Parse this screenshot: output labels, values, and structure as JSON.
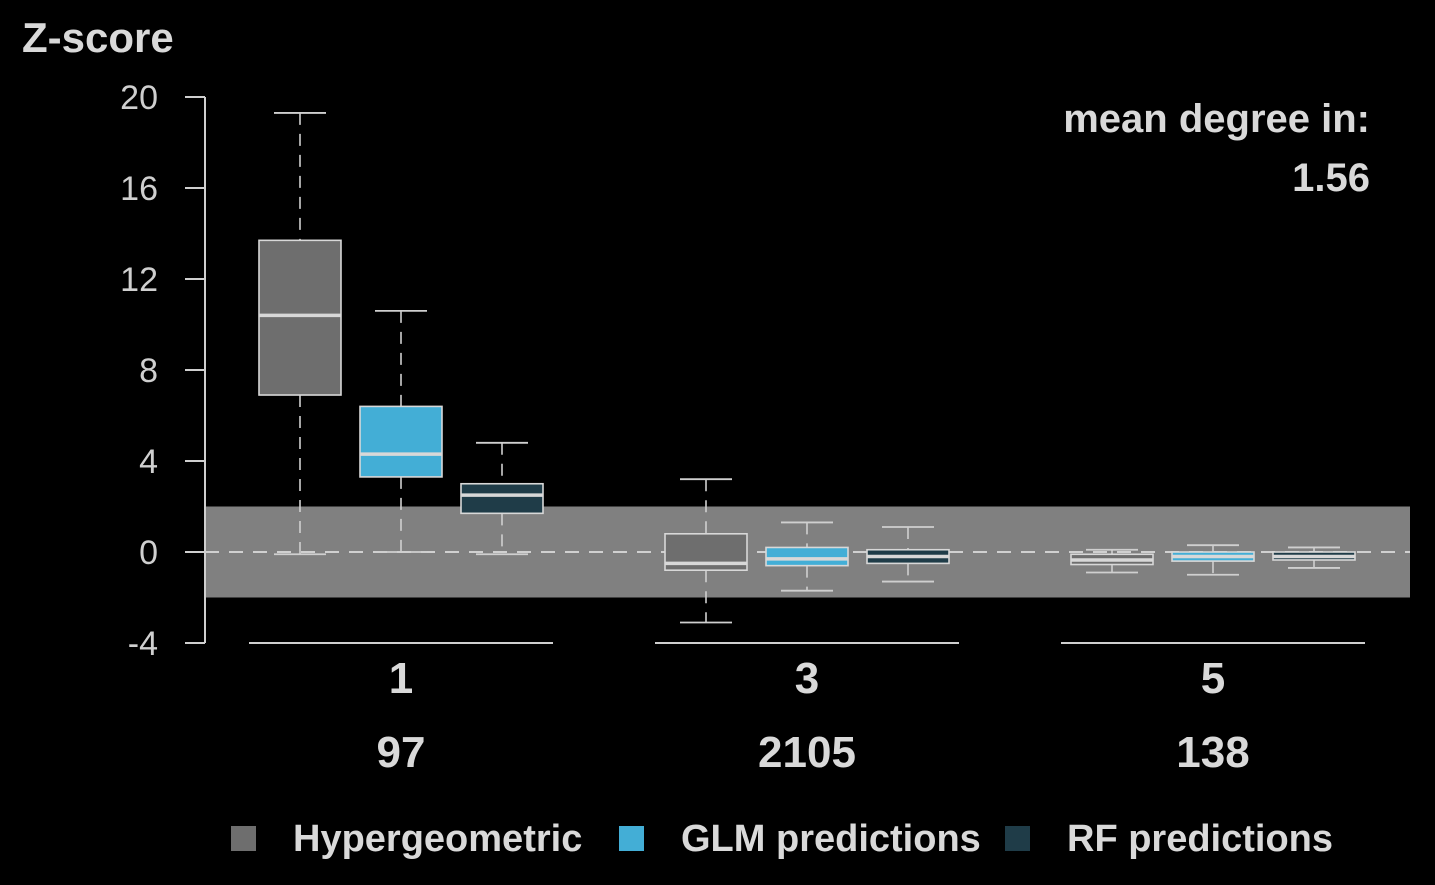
{
  "chart_data": {
    "type": "boxplot",
    "ylabel": "Z-score",
    "ylim": [
      -4,
      20
    ],
    "yticks": [
      "20",
      "16",
      "12",
      "8",
      "4",
      "0",
      "-4"
    ],
    "band": [
      -2,
      2
    ],
    "reference_line": 0,
    "annotation": {
      "line1": "mean degree in:",
      "line2": "1.56"
    },
    "groups": [
      {
        "label": "1",
        "count": "97"
      },
      {
        "label": "3",
        "count": "2105"
      },
      {
        "label": "5",
        "count": "138"
      }
    ],
    "series": [
      {
        "name": "Hypergeometric",
        "color": "#6e6e6e",
        "boxes": [
          {
            "whisker_low": -0.1,
            "q1": 6.9,
            "median": 10.4,
            "q3": 13.7,
            "whisker_high": 19.3
          },
          {
            "whisker_low": -3.1,
            "q1": -0.8,
            "median": -0.5,
            "q3": 0.8,
            "whisker_high": 3.2
          },
          {
            "whisker_low": -0.9,
            "q1": -0.55,
            "median": -0.35,
            "q3": -0.1,
            "whisker_high": 0.1
          }
        ]
      },
      {
        "name": "GLM predictions",
        "color": "#43aed6",
        "boxes": [
          {
            "whisker_low": 0.0,
            "q1": 3.3,
            "median": 4.3,
            "q3": 6.4,
            "whisker_high": 10.6
          },
          {
            "whisker_low": -1.7,
            "q1": -0.6,
            "median": -0.3,
            "q3": 0.2,
            "whisker_high": 1.3
          },
          {
            "whisker_low": -1.0,
            "q1": -0.4,
            "median": -0.2,
            "q3": 0.0,
            "whisker_high": 0.3
          }
        ]
      },
      {
        "name": "RF predictions",
        "color": "#1f3c48",
        "boxes": [
          {
            "whisker_low": -0.1,
            "q1": 1.7,
            "median": 2.5,
            "q3": 3.0,
            "whisker_high": 4.8
          },
          {
            "whisker_low": -1.3,
            "q1": -0.5,
            "median": -0.2,
            "q3": 0.1,
            "whisker_high": 1.1
          },
          {
            "whisker_low": -0.7,
            "q1": -0.35,
            "median": -0.2,
            "q3": 0.0,
            "whisker_high": 0.2
          }
        ]
      }
    ],
    "legend_placement": "bottom"
  }
}
